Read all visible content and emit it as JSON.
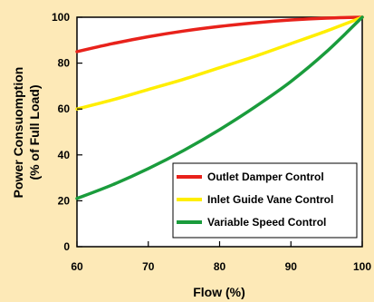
{
  "chart_data": {
    "type": "line",
    "xlabel": "Flow (%)",
    "ylabel_lines": [
      "Power Consuomption",
      "(% of Full Load)"
    ],
    "xlim": [
      60,
      100
    ],
    "ylim": [
      0,
      100
    ],
    "x_ticks": [
      60,
      70,
      80,
      90,
      100
    ],
    "y_ticks": [
      0,
      20,
      40,
      60,
      80,
      100
    ],
    "grid": false,
    "legend_position": "bottom-right",
    "x": [
      60,
      65,
      70,
      75,
      80,
      85,
      90,
      95,
      100
    ],
    "series": [
      {
        "name": "Outlet Damper Control",
        "color": "#e8221b",
        "values": [
          85,
          88.5,
          91.5,
          94,
          96,
          97.6,
          98.8,
          99.6,
          100
        ]
      },
      {
        "name": "Inlet Guide Vane Control",
        "color": "#ffee00",
        "values": [
          60,
          64,
          68.5,
          73,
          78,
          83,
          88.5,
          94,
          100
        ]
      },
      {
        "name": "Variable Speed Control",
        "color": "#1a9c3c",
        "values": [
          21,
          27,
          34,
          42,
          51,
          61,
          72,
          85,
          100
        ]
      }
    ]
  }
}
